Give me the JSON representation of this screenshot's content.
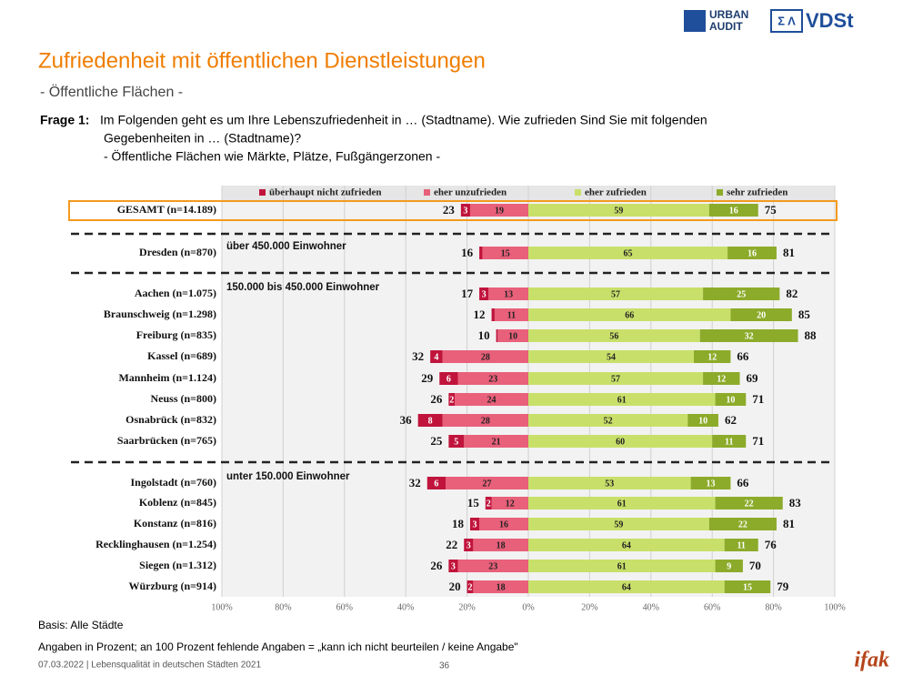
{
  "header": {
    "title": "Zufriedenheit mit öffentlichen Dienstleistungen",
    "subtitle": "- Öffentliche Flächen -",
    "question_label": "Frage 1:",
    "question_lines": [
      "Im Folgenden geht es um Ihre Lebenszufriedenheit in … (Stadtname). Wie zufrieden Sind Sie mit folgenden",
      "Gegebenheiten in … (Stadtname)?",
      "- Öffentliche Flächen wie Märkte, Plätze, Fußgängerzonen -"
    ],
    "logo_urban": [
      "URBAN",
      "AUDIT"
    ],
    "logo_vdst": "VDSt"
  },
  "chart_data": {
    "type": "diverging_bar",
    "categories": [
      "GESAMT (n=14.189)",
      "Dresden (n=870)",
      "Aachen (n=1.075)",
      "Braunschweig (n=1.298)",
      "Freiburg (n=835)",
      "Kassel (n=689)",
      "Mannheim (n=1.124)",
      "Neuss (n=800)",
      "Osnabrück (n=832)",
      "Saarbrücken (n=765)",
      "Ingolstadt (n=760)",
      "Koblenz (n=845)",
      "Konstanz (n=816)",
      "Recklinghausen (n=1.254)",
      "Siegen (n=1.312)",
      "Würzburg (n=914)"
    ],
    "groups": [
      "über 450.000 Einwohner",
      "150.000 bis 450.000 Einwohner",
      "unter 150.000 Einwohner"
    ],
    "series": [
      {
        "name": "überhaupt nicht zufrieden",
        "color": "#c0143c",
        "values": [
          -3,
          -1,
          -3,
          -1,
          -0.5,
          -4,
          -6,
          -2,
          -8,
          -5,
          -6,
          -2,
          -3,
          -3,
          -3,
          -2
        ],
        "value_labels": [
          "3",
          null,
          "3",
          null,
          null,
          "4",
          "6",
          "2",
          "8",
          "5",
          "6",
          "2",
          "3",
          "3",
          "3",
          "2"
        ]
      },
      {
        "name": "eher unzufrieden",
        "color": "#e8607a",
        "values": [
          -19,
          -15,
          -13,
          -11,
          -10,
          -28,
          -23,
          -24,
          -28,
          -21,
          -27,
          -12,
          -16,
          -18,
          -23,
          -18
        ],
        "value_labels": [
          "19",
          "15",
          "13",
          "11",
          "10",
          "28",
          "23",
          "24",
          "28",
          "21",
          "27",
          "12",
          "16",
          "18",
          "23",
          "18"
        ]
      },
      {
        "name": "eher zufrieden",
        "color": "#c8e06a",
        "values": [
          59,
          65,
          57,
          66,
          56,
          54,
          57,
          61,
          52,
          60,
          53,
          61,
          59,
          64,
          61,
          64
        ]
      },
      {
        "name": "sehr zufrieden",
        "color": "#8cab2a",
        "values": [
          16,
          16,
          25,
          20,
          32,
          12,
          12,
          10,
          10,
          11,
          13,
          22,
          22,
          11,
          9,
          15
        ]
      }
    ],
    "negative_totals": [
      23,
      16,
      17,
      12,
      10,
      32,
      29,
      26,
      36,
      25,
      32,
      15,
      18,
      22,
      26,
      20
    ],
    "positive_totals": [
      75,
      81,
      82,
      85,
      88,
      66,
      69,
      71,
      62,
      71,
      66,
      83,
      81,
      76,
      70,
      79
    ],
    "xlim": [
      -100,
      100
    ],
    "xticks": [
      {
        "value": -100,
        "label": "100%"
      },
      {
        "value": -80,
        "label": "80%"
      },
      {
        "value": -60,
        "label": "60%"
      },
      {
        "value": -40,
        "label": "40%"
      },
      {
        "value": -20,
        "label": "20%"
      },
      {
        "value": 0,
        "label": "0%"
      },
      {
        "value": 20,
        "label": "20%"
      },
      {
        "value": 40,
        "label": "40%"
      },
      {
        "value": 60,
        "label": "60%"
      },
      {
        "value": 80,
        "label": "80%"
      },
      {
        "value": 100,
        "label": "100%"
      }
    ],
    "grid": true
  },
  "footer": {
    "basis": "Basis: Alle Städte",
    "note": "Angaben in Prozent; an 100 Prozent fehlende Angaben = „kann ich nicht beurteilen / keine Angabe\"",
    "date": "07.03.2022 | Lebensqualität in deutschen Städten 2021",
    "page": "36",
    "brand": "ifak"
  }
}
